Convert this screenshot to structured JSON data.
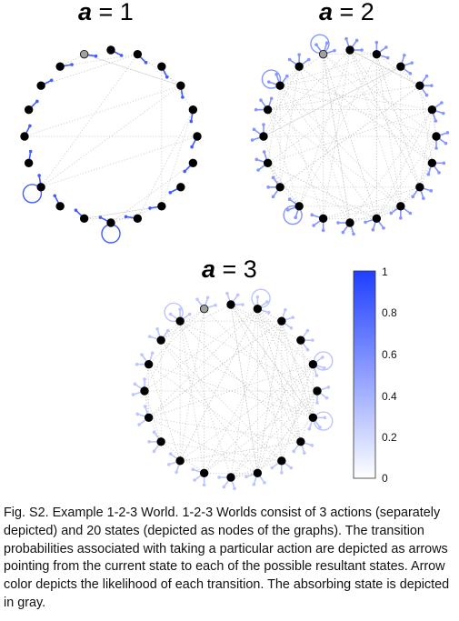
{
  "panels": [
    {
      "var": "a",
      "eq": " = 1",
      "nodes": 20,
      "gray_node": 19,
      "self_loops": [
        10,
        13
      ],
      "edge_intensity": 0.85,
      "dense_edges": false
    },
    {
      "var": "a",
      "eq": " = 2",
      "nodes": 20,
      "gray_node": 19,
      "self_loops": [
        17,
        19,
        12
      ],
      "edge_intensity": 0.55,
      "dense_edges": true
    },
    {
      "var": "a",
      "eq": " = 3",
      "nodes": 20,
      "gray_node": 19,
      "self_loops": [
        4,
        6,
        18,
        1
      ],
      "edge_intensity": 0.3,
      "dense_edges": true
    }
  ],
  "colorbar": {
    "ticks": [
      "0",
      "0.2",
      "0.4",
      "0.6",
      "0.8",
      "1"
    ],
    "color_low": "#ffffff",
    "color_high": "#1f3fff"
  },
  "colors": {
    "node": "#000000",
    "absorbing_node": "#a0a0a0",
    "edge_gray": "#c8c8c8"
  },
  "caption": "Fig. S2. Example 1-2-3 World. 1-2-3 Worlds consist of 3 actions (separately depicted) and 20 states (depicted as nodes of the graphs). The transition probabilities associated with taking a particular action are depicted as arrows pointing from the current state to each of the possible resultant states. Arrow color depicts the likelihood of each transition. The absorbing state is depicted in gray."
}
